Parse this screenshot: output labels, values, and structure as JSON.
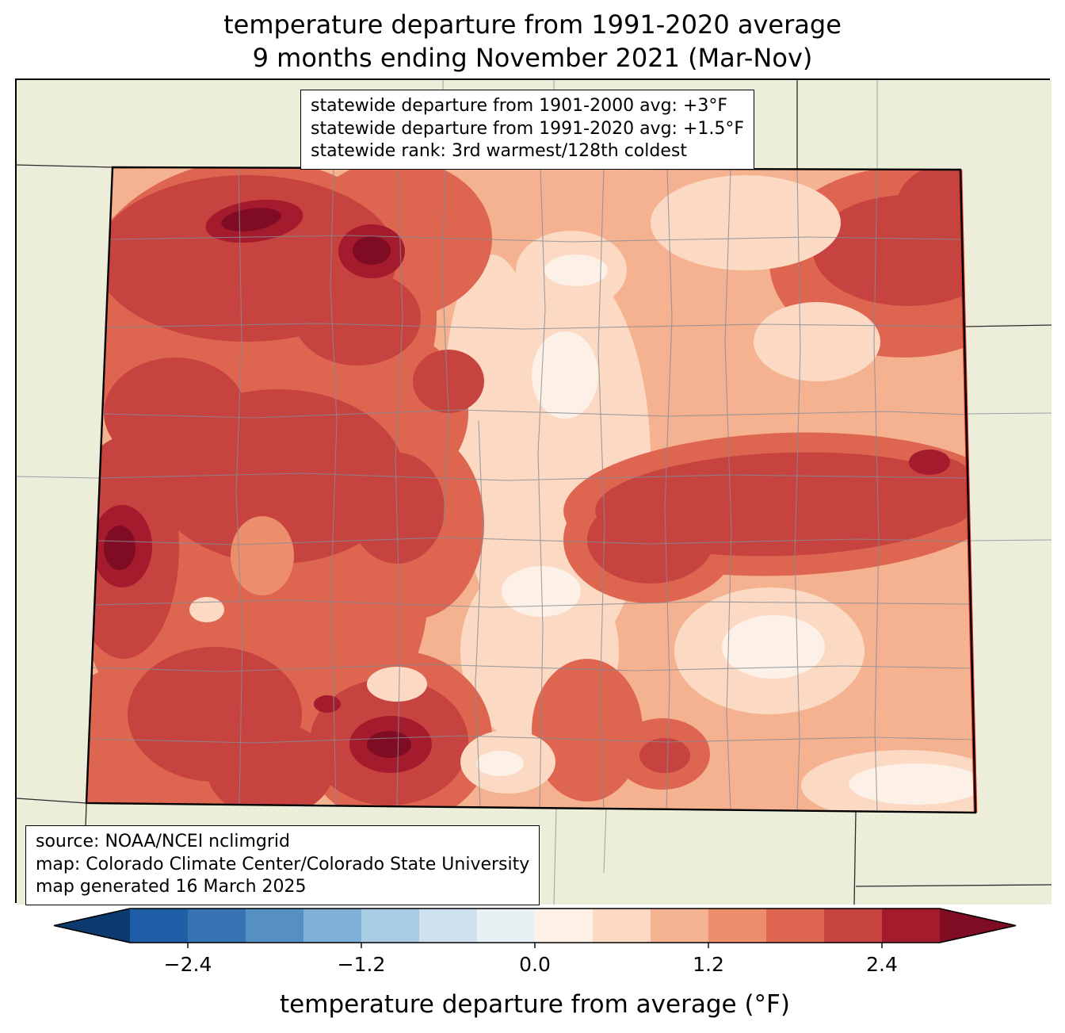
{
  "title": {
    "line1": "temperature departure from 1991-2020 average",
    "line2": "9 months ending November 2021 (Mar-Nov)"
  },
  "stats_box": {
    "lines": [
      "statewide departure from 1901-2000 avg: +3°F",
      "statewide departure from 1991-2020 avg: +1.5°F",
      "statewide rank: 3rd warmest/128th coldest"
    ]
  },
  "source_box": {
    "lines": [
      "source: NOAA/NCEI nclimgrid",
      "map: Colorado Climate Center/Colorado State University",
      "map generated 16 March 2025"
    ]
  },
  "map": {
    "region_label": "Colorado",
    "palette": {
      "bg": "#edeeda",
      "pale0": "#fdf0e6",
      "light1": "#fbd9c3",
      "mid2": "#f5b291",
      "mid3": "#ec8e6c",
      "red4": "#de6550",
      "red5": "#c64340",
      "maroon6": "#a31b2c",
      "deep7": "#7f0c22",
      "county": "#858d96",
      "neighbor": "#2b2b2b",
      "state_border": "#000000",
      "east_edge_red": "#d93025"
    }
  },
  "colorbar": {
    "label": "temperature departure from average (°F)",
    "range_min": -2.8,
    "range_max": 2.8,
    "step": 0.4,
    "ticks": [
      -2.4,
      -1.2,
      0,
      1.2,
      2.4
    ],
    "tick_labels": [
      "−2.4",
      "−1.2",
      "0.0",
      "1.2",
      "2.4"
    ],
    "segment_colors": [
      "#1f5fa8",
      "#3573b3",
      "#568fc3",
      "#7fb0d5",
      "#a8cce4",
      "#cfe1ef",
      "#e9f0f4",
      "#fdf0e6",
      "#fbd9c3",
      "#f5b291",
      "#ec8e6c",
      "#de6550",
      "#c64340",
      "#a31b2c"
    ],
    "extend_low_color": "#0a3a6e",
    "extend_high_color": "#7f0c22"
  }
}
